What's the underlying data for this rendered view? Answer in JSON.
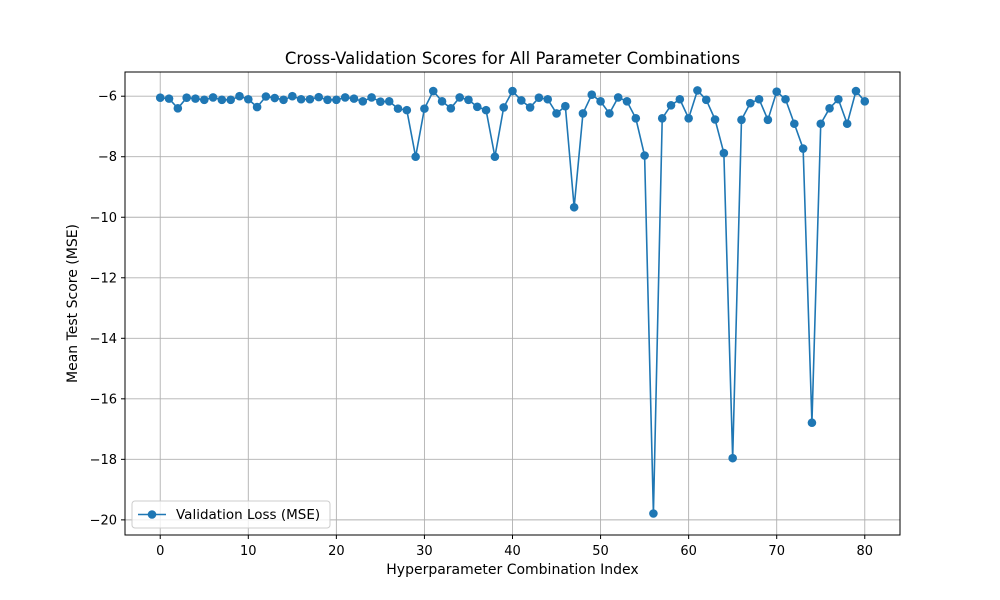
{
  "chart_data": {
    "type": "line",
    "title": "Cross-Validation Scores for All Parameter Combinations",
    "xlabel": "Hyperparameter Combination Index",
    "ylabel": "Mean Test Score (MSE)",
    "xlim": [
      -4,
      84
    ],
    "ylim": [
      -20.5,
      -5.2
    ],
    "xticks": [
      0,
      10,
      20,
      30,
      40,
      50,
      60,
      70,
      80
    ],
    "yticks": [
      -6,
      -8,
      -10,
      -12,
      -14,
      -16,
      -18,
      -20
    ],
    "xtick_labels": [
      "0",
      "10",
      "20",
      "30",
      "40",
      "50",
      "60",
      "70",
      "80"
    ],
    "ytick_labels": [
      "−6",
      "−8",
      "−10",
      "−12",
      "−14",
      "−16",
      "−18",
      "−20"
    ],
    "grid": true,
    "legend_position": "lower-left",
    "series": [
      {
        "name": "Validation Loss (MSE)",
        "color": "#1f77b4",
        "marker": "circle",
        "x": [
          0,
          1,
          2,
          3,
          4,
          5,
          6,
          7,
          8,
          9,
          10,
          11,
          12,
          13,
          14,
          15,
          16,
          17,
          18,
          19,
          20,
          21,
          22,
          23,
          24,
          25,
          26,
          27,
          28,
          29,
          30,
          31,
          32,
          33,
          34,
          35,
          36,
          37,
          38,
          39,
          40,
          41,
          42,
          43,
          44,
          45,
          46,
          47,
          48,
          49,
          50,
          51,
          52,
          53,
          54,
          55,
          56,
          57,
          58,
          59,
          60,
          61,
          62,
          63,
          64,
          65,
          66,
          67,
          68,
          69,
          70,
          71,
          72,
          73,
          74,
          75,
          76,
          77,
          78,
          79,
          80
        ],
        "values": [
          -6.05,
          -6.08,
          -6.4,
          -6.05,
          -6.08,
          -6.12,
          -6.04,
          -6.12,
          -6.12,
          -6.0,
          -6.1,
          -6.36,
          -6.01,
          -6.06,
          -6.12,
          -6.0,
          -6.1,
          -6.1,
          -6.03,
          -6.12,
          -6.12,
          -6.04,
          -6.08,
          -6.17,
          -6.04,
          -6.18,
          -6.17,
          -6.41,
          -6.46,
          -8.0,
          -6.41,
          -5.83,
          -6.17,
          -6.4,
          -6.04,
          -6.12,
          -6.35,
          -6.46,
          -8.0,
          -6.37,
          -5.83,
          -6.14,
          -6.37,
          -6.05,
          -6.1,
          -6.57,
          -6.33,
          -9.67,
          -6.57,
          -5.95,
          -6.17,
          -6.57,
          -6.04,
          -6.17,
          -6.73,
          -7.96,
          -19.79,
          -6.73,
          -6.3,
          -6.1,
          -6.73,
          -5.81,
          -6.12,
          -6.77,
          -7.88,
          -17.96,
          -6.78,
          -6.23,
          -6.1,
          -6.78,
          -5.85,
          -6.1,
          -6.91,
          -7.73,
          -16.79,
          -6.91,
          -6.4,
          -6.1,
          -6.91,
          -5.83,
          -6.17
        ]
      }
    ]
  }
}
